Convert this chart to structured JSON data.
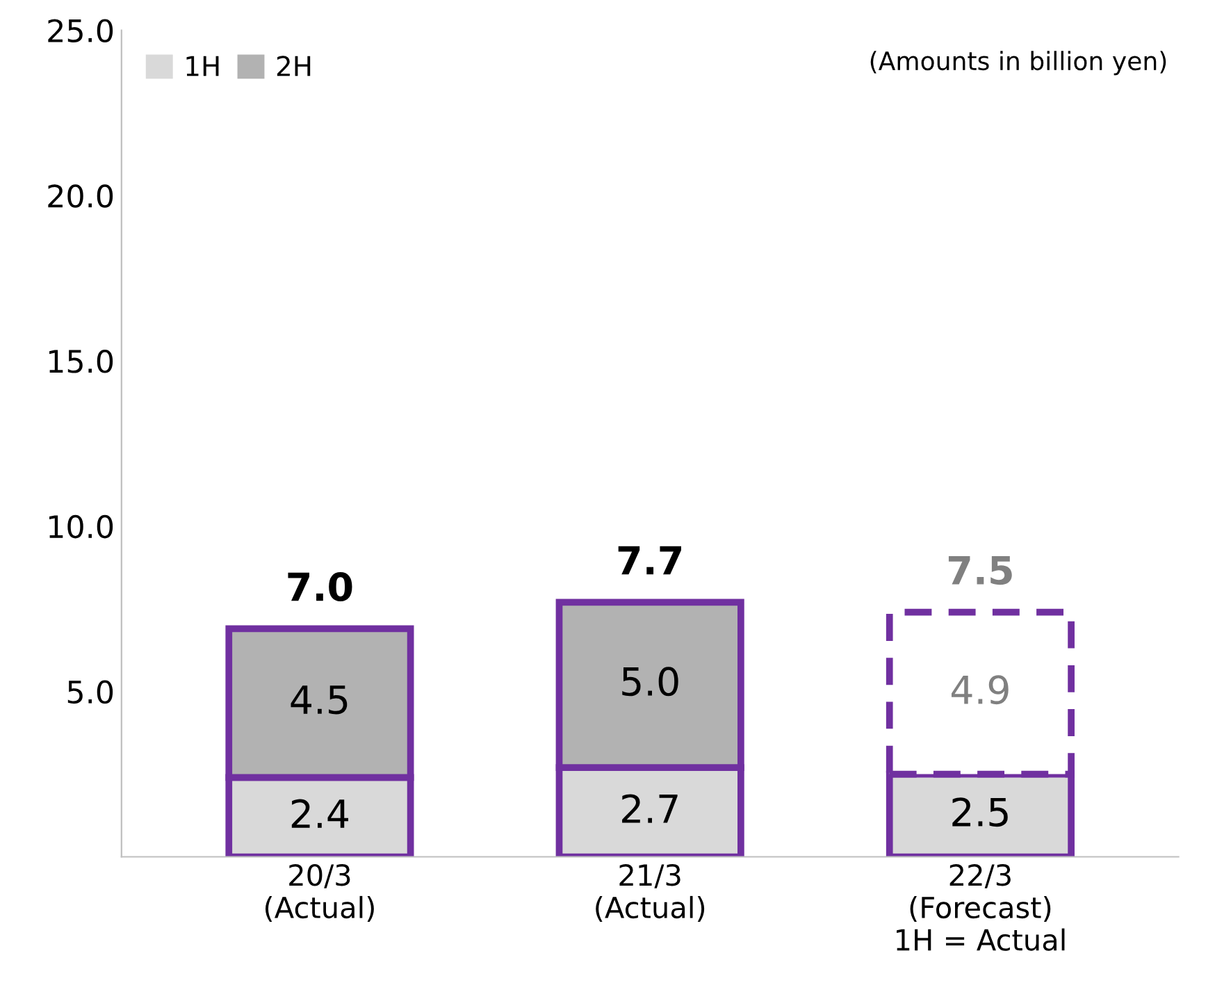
{
  "chart_data": {
    "type": "bar",
    "stacked": true,
    "categories": [
      "20/3\n(Actual)",
      "21/3\n(Actual)",
      "22/3\n(Forecast)\n1H = Actual"
    ],
    "series": [
      {
        "name": "1H",
        "color": "#d9d9d9",
        "colors": [
          "#d9d9d9",
          "#d9d9d9",
          "#d9d9d9"
        ],
        "values": [
          2.4,
          2.7,
          2.5
        ],
        "value_labels": [
          "2.4",
          "2.7",
          "2.5"
        ],
        "line_style": [
          "solid",
          "solid",
          "solid"
        ]
      },
      {
        "name": "2H",
        "color": "#b2b2b2",
        "colors": [
          "#b2b2b2",
          "#b2b2b2",
          "#ffffff"
        ],
        "values": [
          4.5,
          5.0,
          4.9
        ],
        "value_labels": [
          "4.5",
          "5.0",
          "4.9"
        ],
        "line_style": [
          "solid",
          "solid",
          "dashed"
        ]
      }
    ],
    "totals": [
      "7.0",
      "7.7",
      "7.5"
    ],
    "ylim": [
      0,
      25
    ],
    "yticks": [
      {
        "value": 5,
        "label": "5.0"
      },
      {
        "value": 10,
        "label": "10.0"
      },
      {
        "value": 15,
        "label": "15.0"
      },
      {
        "value": 20,
        "label": "20.0"
      },
      {
        "value": 25,
        "label": "25.0"
      }
    ],
    "grid": false,
    "legend": "top left",
    "annotations": [
      "(Amounts in billion yen)"
    ]
  }
}
